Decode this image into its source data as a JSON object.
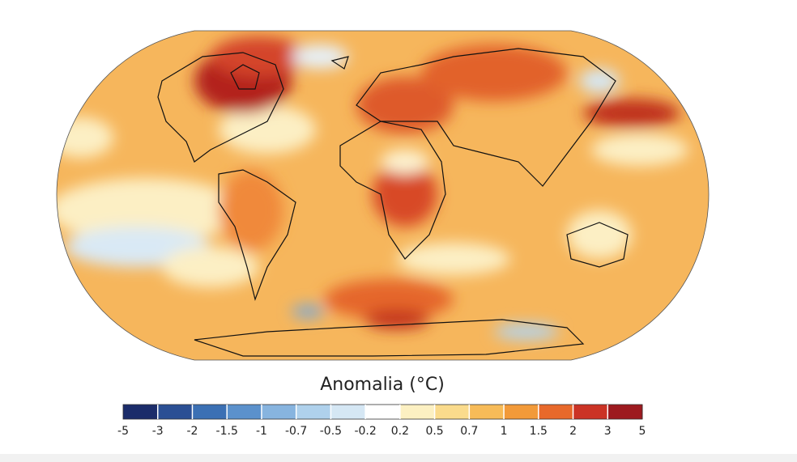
{
  "legend": {
    "title": "Anomalia (°C)",
    "ticks": [
      "-5",
      "-3",
      "-2",
      "-1.5",
      "-1",
      "-0.7",
      "-0.5",
      "-0.2",
      "0.2",
      "0.5",
      "0.7",
      "1",
      "1.5",
      "2",
      "3",
      "5"
    ],
    "colors": [
      "#1b2c6a",
      "#2b4f94",
      "#3b70b4",
      "#5b91cc",
      "#87b4df",
      "#afd1ec",
      "#d5e7f4",
      "#ffffff",
      "#fcf0c2",
      "#fadb8c",
      "#f7bb58",
      "#f29a39",
      "#e8692b",
      "#cb3325",
      "#9d1a1f"
    ]
  }
}
